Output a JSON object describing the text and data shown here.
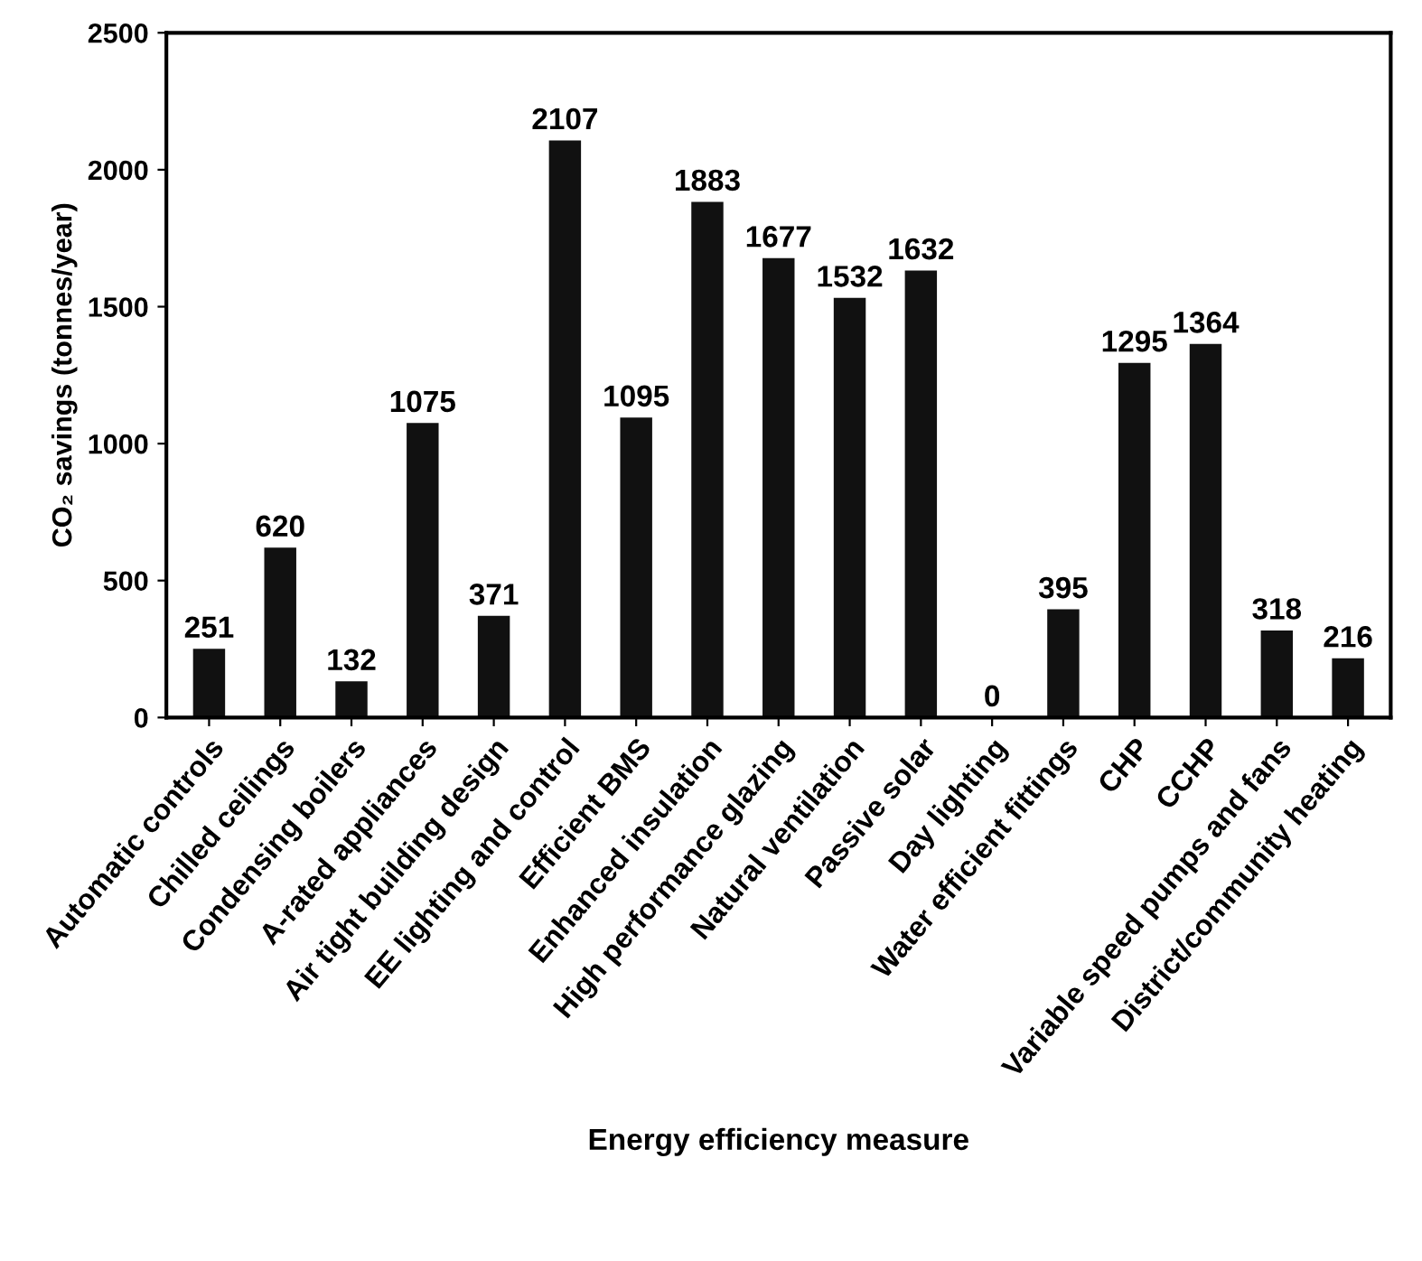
{
  "chart_data": {
    "type": "bar",
    "xlabel": "Energy efficiency measure",
    "ylabel": "CO₂ savings (tonnes/year)",
    "categories": [
      "Automatic controls",
      "Chilled ceilings",
      "Condensing boilers",
      "A-rated appliances",
      "Air tight building design",
      "EE lighting and control",
      "Efficient BMS",
      "Enhanced insulation",
      "High performance glazing",
      "Natural ventilation",
      "Passive solar",
      "Day lighting",
      "Water efficient fittings",
      "CHP",
      "CCHP",
      "Variable speed pumps and fans",
      "District/community heating"
    ],
    "values": [
      251,
      620,
      132,
      1075,
      371,
      2107,
      1095,
      1883,
      1677,
      1532,
      1632,
      0,
      395,
      1295,
      1364,
      318,
      216
    ],
    "color": "#111111",
    "data_labels": true,
    "ylim": [
      0,
      2500
    ],
    "yticks": [
      0,
      500,
      1000,
      1500,
      2000,
      2500
    ],
    "grid": false
  }
}
